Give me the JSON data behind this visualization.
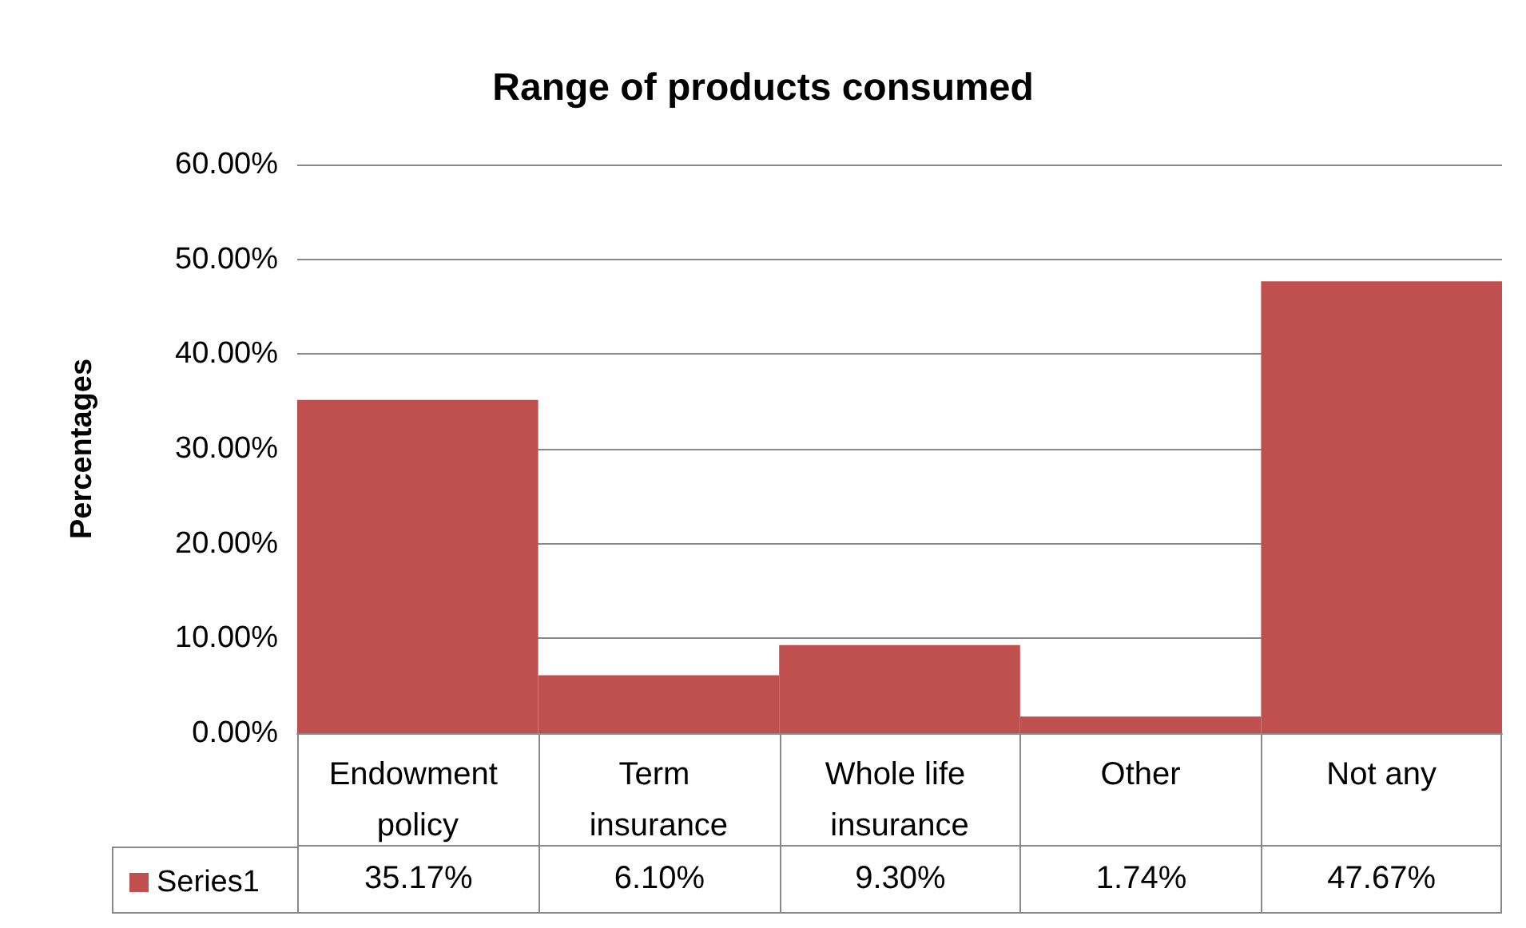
{
  "chart_data": {
    "type": "bar",
    "title": "Range of products consumed",
    "ylabel": "Percentages",
    "categories": [
      "Endowment policy",
      "Term insurance",
      "Whole life insurance",
      "Other",
      "Not any"
    ],
    "series": [
      {
        "name": "Series1",
        "color": "#c0504d",
        "values": [
          35.17,
          6.1,
          9.3,
          1.74,
          47.67
        ],
        "value_labels": [
          "35.17%",
          "6.10%",
          "9.30%",
          "1.74%",
          "47.67%"
        ]
      }
    ],
    "ylim": [
      0,
      60
    ],
    "yticks": [
      {
        "value": 0,
        "label": "0.00%"
      },
      {
        "value": 10,
        "label": "10.00%"
      },
      {
        "value": 20,
        "label": "20.00%"
      },
      {
        "value": 30,
        "label": "30.00%"
      },
      {
        "value": 40,
        "label": "40.00%"
      },
      {
        "value": 50,
        "label": "50.00%"
      },
      {
        "value": 60,
        "label": "60.00%"
      }
    ],
    "grid": "y",
    "legend": "bottom left"
  }
}
